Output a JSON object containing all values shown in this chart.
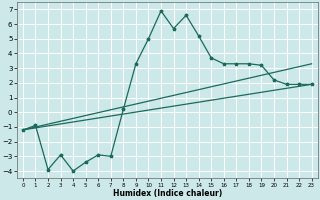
{
  "xlabel": "Humidex (Indice chaleur)",
  "bg_color": "#cce8e8",
  "grid_color": "#ffffff",
  "line_color": "#1a6b5a",
  "xlim": [
    -0.5,
    23.5
  ],
  "ylim": [
    -4.5,
    7.5
  ],
  "xticks": [
    0,
    1,
    2,
    3,
    4,
    5,
    6,
    7,
    8,
    9,
    10,
    11,
    12,
    13,
    14,
    15,
    16,
    17,
    18,
    19,
    20,
    21,
    22,
    23
  ],
  "yticks": [
    -4,
    -3,
    -2,
    -1,
    0,
    1,
    2,
    3,
    4,
    5,
    6,
    7
  ],
  "curve_x": [
    0,
    1,
    2,
    3,
    4,
    5,
    6,
    7,
    8,
    9,
    10,
    11,
    12,
    13,
    14,
    15,
    16,
    17,
    18,
    19,
    20,
    21,
    22,
    23
  ],
  "curve_y": [
    -1.2,
    -0.9,
    -3.9,
    -2.9,
    -4.0,
    -3.4,
    -2.9,
    -3.0,
    0.2,
    3.3,
    5.0,
    6.9,
    5.7,
    6.6,
    5.2,
    3.7,
    3.3,
    3.3,
    3.3,
    3.2,
    2.2,
    1.9,
    1.9,
    1.9
  ],
  "line1_x": [
    0,
    23
  ],
  "line1_y": [
    -1.2,
    1.9
  ],
  "line2_x": [
    0,
    23
  ],
  "line2_y": [
    -1.2,
    3.3
  ]
}
